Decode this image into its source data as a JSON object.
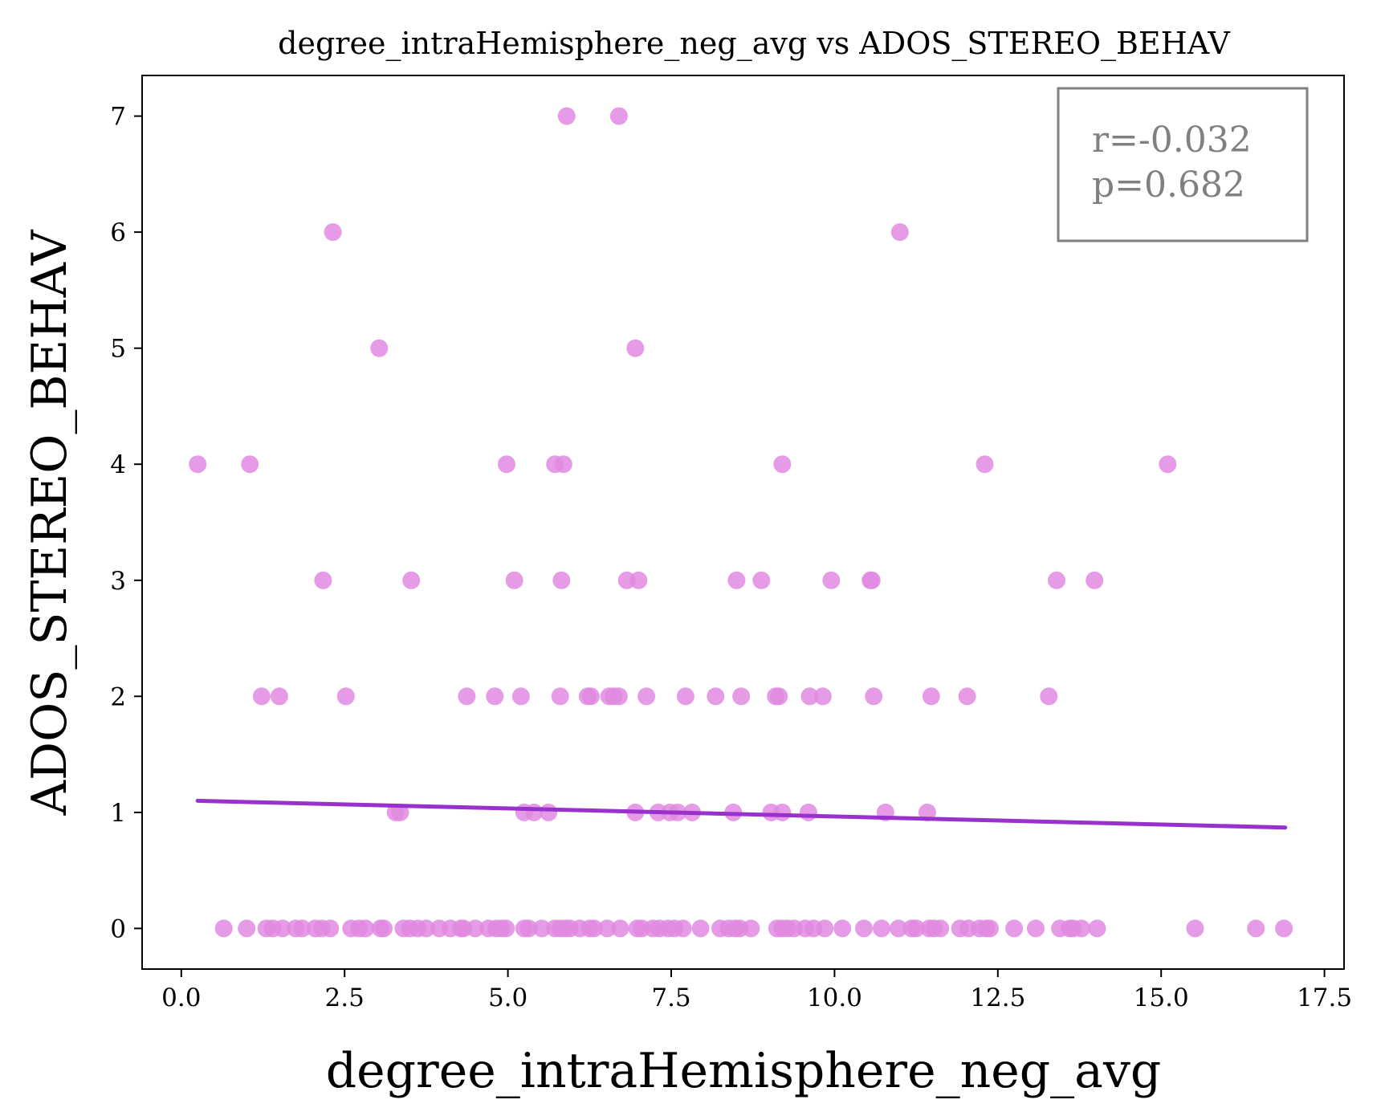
{
  "chart_data": {
    "type": "scatter",
    "title": "degree_intraHemisphere_neg_avg vs ADOS_STEREO_BEHAV",
    "xlabel": "degree_intraHemisphere_neg_avg",
    "ylabel": "ADOS_STEREO_BEHAV",
    "xlim": [
      -0.6,
      17.8
    ],
    "ylim": [
      -0.35,
      7.35
    ],
    "xticks": [
      0.0,
      2.5,
      5.0,
      7.5,
      10.0,
      12.5,
      15.0,
      17.5
    ],
    "xtick_labels": [
      "0.0",
      "2.5",
      "5.0",
      "7.5",
      "10.0",
      "12.5",
      "15.0",
      "17.5"
    ],
    "yticks": [
      0,
      1,
      2,
      3,
      4,
      5,
      6,
      7
    ],
    "ytick_labels": [
      "0",
      "1",
      "2",
      "3",
      "4",
      "5",
      "6",
      "7"
    ],
    "grid": false,
    "point_color": "#e08ae0",
    "line_color": "#9932cc",
    "stats": {
      "r_label": "r=-0.032",
      "p_label": "p=0.682",
      "placement": "top-right"
    },
    "regression_line": {
      "x": [
        0.25,
        16.9
      ],
      "y": [
        1.1,
        0.87
      ]
    },
    "points": [
      {
        "x": 0.25,
        "y": 4
      },
      {
        "x": 1.05,
        "y": 4
      },
      {
        "x": 4.98,
        "y": 4
      },
      {
        "x": 5.72,
        "y": 4
      },
      {
        "x": 5.85,
        "y": 4
      },
      {
        "x": 9.2,
        "y": 4
      },
      {
        "x": 12.3,
        "y": 4
      },
      {
        "x": 15.1,
        "y": 4
      },
      {
        "x": 5.9,
        "y": 7
      },
      {
        "x": 6.7,
        "y": 7
      },
      {
        "x": 2.32,
        "y": 6
      },
      {
        "x": 11.0,
        "y": 6
      },
      {
        "x": 3.03,
        "y": 5
      },
      {
        "x": 6.95,
        "y": 5
      },
      {
        "x": 2.17,
        "y": 3
      },
      {
        "x": 3.52,
        "y": 3
      },
      {
        "x": 5.1,
        "y": 3
      },
      {
        "x": 5.82,
        "y": 3
      },
      {
        "x": 6.82,
        "y": 3
      },
      {
        "x": 7.0,
        "y": 3
      },
      {
        "x": 8.5,
        "y": 3
      },
      {
        "x": 8.88,
        "y": 3
      },
      {
        "x": 9.95,
        "y": 3
      },
      {
        "x": 10.55,
        "y": 3
      },
      {
        "x": 10.57,
        "y": 3
      },
      {
        "x": 13.4,
        "y": 3
      },
      {
        "x": 13.98,
        "y": 3
      },
      {
        "x": 1.23,
        "y": 2
      },
      {
        "x": 1.5,
        "y": 2
      },
      {
        "x": 2.52,
        "y": 2
      },
      {
        "x": 4.37,
        "y": 2
      },
      {
        "x": 4.8,
        "y": 2
      },
      {
        "x": 5.2,
        "y": 2
      },
      {
        "x": 5.8,
        "y": 2
      },
      {
        "x": 6.22,
        "y": 2
      },
      {
        "x": 6.27,
        "y": 2
      },
      {
        "x": 6.55,
        "y": 2
      },
      {
        "x": 6.62,
        "y": 2
      },
      {
        "x": 6.7,
        "y": 2
      },
      {
        "x": 7.12,
        "y": 2
      },
      {
        "x": 7.72,
        "y": 2
      },
      {
        "x": 8.18,
        "y": 2
      },
      {
        "x": 8.57,
        "y": 2
      },
      {
        "x": 9.1,
        "y": 2
      },
      {
        "x": 9.15,
        "y": 2
      },
      {
        "x": 9.62,
        "y": 2
      },
      {
        "x": 9.82,
        "y": 2
      },
      {
        "x": 10.6,
        "y": 2
      },
      {
        "x": 11.48,
        "y": 2
      },
      {
        "x": 12.03,
        "y": 2
      },
      {
        "x": 13.28,
        "y": 2
      },
      {
        "x": 3.28,
        "y": 1
      },
      {
        "x": 3.35,
        "y": 1
      },
      {
        "x": 5.25,
        "y": 1
      },
      {
        "x": 5.4,
        "y": 1
      },
      {
        "x": 5.62,
        "y": 1
      },
      {
        "x": 6.95,
        "y": 1
      },
      {
        "x": 7.3,
        "y": 1
      },
      {
        "x": 7.48,
        "y": 1
      },
      {
        "x": 7.6,
        "y": 1
      },
      {
        "x": 7.82,
        "y": 1
      },
      {
        "x": 8.45,
        "y": 1
      },
      {
        "x": 9.03,
        "y": 1
      },
      {
        "x": 9.2,
        "y": 1
      },
      {
        "x": 9.6,
        "y": 1
      },
      {
        "x": 10.78,
        "y": 1
      },
      {
        "x": 11.42,
        "y": 1
      },
      {
        "x": 0.65,
        "y": 0
      },
      {
        "x": 1.0,
        "y": 0
      },
      {
        "x": 1.3,
        "y": 0
      },
      {
        "x": 1.4,
        "y": 0
      },
      {
        "x": 1.55,
        "y": 0
      },
      {
        "x": 1.75,
        "y": 0
      },
      {
        "x": 1.85,
        "y": 0
      },
      {
        "x": 2.05,
        "y": 0
      },
      {
        "x": 2.15,
        "y": 0
      },
      {
        "x": 2.28,
        "y": 0
      },
      {
        "x": 2.6,
        "y": 0
      },
      {
        "x": 2.72,
        "y": 0
      },
      {
        "x": 2.82,
        "y": 0
      },
      {
        "x": 3.05,
        "y": 0
      },
      {
        "x": 3.1,
        "y": 0
      },
      {
        "x": 3.4,
        "y": 0
      },
      {
        "x": 3.5,
        "y": 0
      },
      {
        "x": 3.62,
        "y": 0
      },
      {
        "x": 3.75,
        "y": 0
      },
      {
        "x": 3.95,
        "y": 0
      },
      {
        "x": 4.12,
        "y": 0
      },
      {
        "x": 4.28,
        "y": 0
      },
      {
        "x": 4.32,
        "y": 0
      },
      {
        "x": 4.5,
        "y": 0
      },
      {
        "x": 4.7,
        "y": 0
      },
      {
        "x": 4.82,
        "y": 0
      },
      {
        "x": 4.9,
        "y": 0
      },
      {
        "x": 4.97,
        "y": 0
      },
      {
        "x": 5.25,
        "y": 0
      },
      {
        "x": 5.32,
        "y": 0
      },
      {
        "x": 5.52,
        "y": 0
      },
      {
        "x": 5.72,
        "y": 0
      },
      {
        "x": 5.8,
        "y": 0
      },
      {
        "x": 5.88,
        "y": 0
      },
      {
        "x": 5.95,
        "y": 0
      },
      {
        "x": 6.1,
        "y": 0
      },
      {
        "x": 6.25,
        "y": 0
      },
      {
        "x": 6.32,
        "y": 0
      },
      {
        "x": 6.52,
        "y": 0
      },
      {
        "x": 6.72,
        "y": 0
      },
      {
        "x": 6.98,
        "y": 0
      },
      {
        "x": 7.05,
        "y": 0
      },
      {
        "x": 7.22,
        "y": 0
      },
      {
        "x": 7.32,
        "y": 0
      },
      {
        "x": 7.45,
        "y": 0
      },
      {
        "x": 7.55,
        "y": 0
      },
      {
        "x": 7.68,
        "y": 0
      },
      {
        "x": 7.95,
        "y": 0
      },
      {
        "x": 8.25,
        "y": 0
      },
      {
        "x": 8.38,
        "y": 0
      },
      {
        "x": 8.48,
        "y": 0
      },
      {
        "x": 8.55,
        "y": 0
      },
      {
        "x": 8.72,
        "y": 0
      },
      {
        "x": 9.12,
        "y": 0
      },
      {
        "x": 9.2,
        "y": 0
      },
      {
        "x": 9.28,
        "y": 0
      },
      {
        "x": 9.38,
        "y": 0
      },
      {
        "x": 9.55,
        "y": 0
      },
      {
        "x": 9.68,
        "y": 0
      },
      {
        "x": 9.85,
        "y": 0
      },
      {
        "x": 10.12,
        "y": 0
      },
      {
        "x": 10.45,
        "y": 0
      },
      {
        "x": 10.72,
        "y": 0
      },
      {
        "x": 10.98,
        "y": 0
      },
      {
        "x": 11.18,
        "y": 0
      },
      {
        "x": 11.25,
        "y": 0
      },
      {
        "x": 11.45,
        "y": 0
      },
      {
        "x": 11.52,
        "y": 0
      },
      {
        "x": 11.62,
        "y": 0
      },
      {
        "x": 11.92,
        "y": 0
      },
      {
        "x": 12.05,
        "y": 0
      },
      {
        "x": 12.22,
        "y": 0
      },
      {
        "x": 12.32,
        "y": 0
      },
      {
        "x": 12.38,
        "y": 0
      },
      {
        "x": 12.75,
        "y": 0
      },
      {
        "x": 13.08,
        "y": 0
      },
      {
        "x": 13.45,
        "y": 0
      },
      {
        "x": 13.6,
        "y": 0
      },
      {
        "x": 13.65,
        "y": 0
      },
      {
        "x": 13.78,
        "y": 0
      },
      {
        "x": 14.02,
        "y": 0
      },
      {
        "x": 15.52,
        "y": 0
      },
      {
        "x": 16.45,
        "y": 0
      },
      {
        "x": 16.88,
        "y": 0
      }
    ]
  }
}
